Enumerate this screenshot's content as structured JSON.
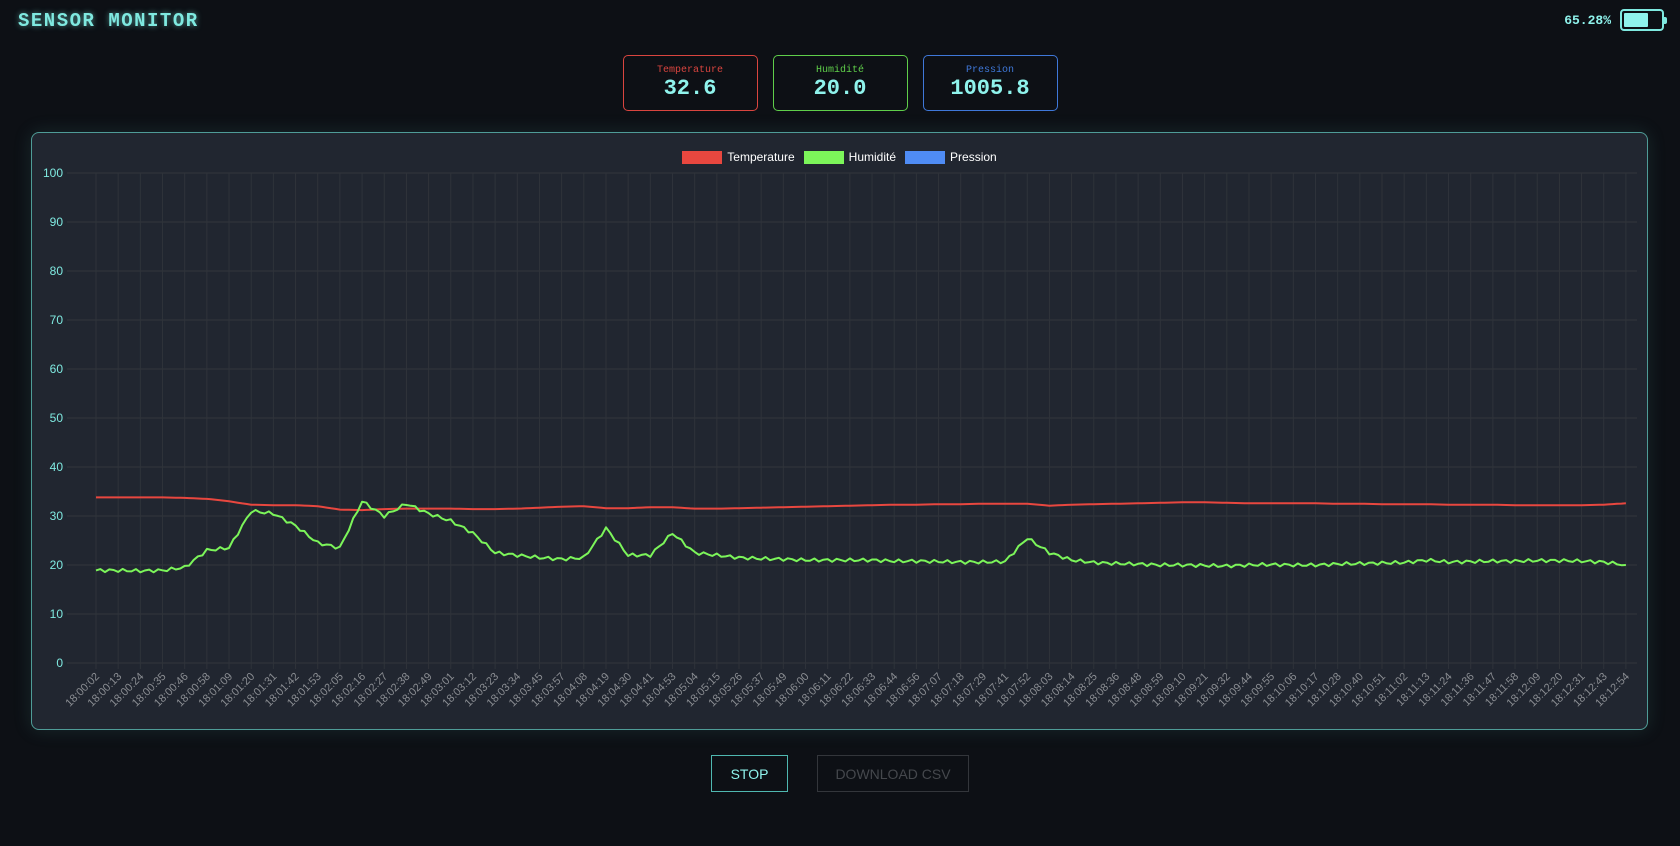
{
  "header": {
    "title": "SENSOR MONITOR",
    "battery": {
      "percent_label": "65.28%",
      "level": 65.28
    }
  },
  "cards": [
    {
      "label": "Temperature",
      "value": "32.6",
      "color": "#d9453f"
    },
    {
      "label": "Humidité",
      "value": "20.0",
      "color": "#5fce4a"
    },
    {
      "label": "Pression",
      "value": "1005.8",
      "color": "#3f78d9"
    }
  ],
  "buttons": {
    "stop_label": "STOP",
    "download_label": "DOWNLOAD CSV"
  },
  "colors": {
    "accent": "#7fe9e0",
    "temperature": "#e8473f",
    "humidity": "#7cf55a",
    "pressure": "#4f8cf5",
    "panel_border": "#4f9c97"
  },
  "chart_data": {
    "type": "line",
    "title": "",
    "xlabel": "",
    "ylabel": "",
    "ylim": [
      0,
      100
    ],
    "yticks": [
      0,
      10,
      20,
      30,
      40,
      50,
      60,
      70,
      80,
      90,
      100
    ],
    "grid": true,
    "legend_position": "top",
    "categories": [
      "18:00:02",
      "18:00:13",
      "18:00:24",
      "18:00:35",
      "18:00:46",
      "18:00:58",
      "18:01:09",
      "18:01:20",
      "18:01:31",
      "18:01:42",
      "18:01:53",
      "18:02:05",
      "18:02:16",
      "18:02:27",
      "18:02:38",
      "18:02:49",
      "18:03:01",
      "18:03:12",
      "18:03:23",
      "18:03:34",
      "18:03:45",
      "18:03:57",
      "18:04:08",
      "18:04:19",
      "18:04:30",
      "18:04:41",
      "18:04:53",
      "18:05:04",
      "18:05:15",
      "18:05:26",
      "18:05:37",
      "18:05:49",
      "18:06:00",
      "18:06:11",
      "18:06:22",
      "18:06:33",
      "18:06:44",
      "18:06:56",
      "18:07:07",
      "18:07:18",
      "18:07:29",
      "18:07:41",
      "18:07:52",
      "18:08:03",
      "18:08:14",
      "18:08:25",
      "18:08:36",
      "18:08:48",
      "18:08:59",
      "18:09:10",
      "18:09:21",
      "18:09:32",
      "18:09:44",
      "18:09:55",
      "18:10:06",
      "18:10:17",
      "18:10:28",
      "18:10:40",
      "18:10:51",
      "18:11:02",
      "18:11:13",
      "18:11:24",
      "18:11:36",
      "18:11:47",
      "18:11:58",
      "18:12:09",
      "18:12:20",
      "18:12:31",
      "18:12:43",
      "18:12:54"
    ],
    "series": [
      {
        "name": "Temperature",
        "color": "#e8473f",
        "values": [
          33.8,
          33.8,
          33.8,
          33.8,
          33.7,
          33.5,
          33.0,
          32.3,
          32.2,
          32.2,
          32.0,
          31.3,
          31.2,
          31.4,
          31.5,
          31.5,
          31.5,
          31.4,
          31.4,
          31.5,
          31.7,
          31.9,
          32.0,
          31.6,
          31.6,
          31.8,
          31.8,
          31.5,
          31.5,
          31.6,
          31.7,
          31.8,
          31.9,
          32.0,
          32.1,
          32.2,
          32.3,
          32.3,
          32.4,
          32.4,
          32.5,
          32.5,
          32.5,
          32.1,
          32.3,
          32.4,
          32.5,
          32.6,
          32.7,
          32.8,
          32.8,
          32.7,
          32.6,
          32.6,
          32.6,
          32.6,
          32.5,
          32.5,
          32.4,
          32.4,
          32.4,
          32.3,
          32.3,
          32.3,
          32.2,
          32.2,
          32.2,
          32.2,
          32.3,
          32.6
        ]
      },
      {
        "name": "Humidité",
        "color": "#7cf55a",
        "values": [
          18.9,
          18.9,
          18.8,
          18.9,
          19.5,
          23.0,
          23.5,
          31.0,
          30.5,
          28.0,
          24.5,
          23.5,
          33.0,
          30.0,
          32.5,
          30.5,
          29.0,
          26.5,
          22.5,
          22.0,
          21.5,
          21.2,
          21.5,
          27.5,
          22.0,
          22.0,
          26.5,
          22.5,
          22.0,
          21.5,
          21.3,
          21.2,
          21.0,
          21.0,
          21.0,
          21.0,
          20.8,
          20.8,
          20.7,
          20.6,
          20.6,
          20.7,
          25.5,
          22.5,
          21.0,
          20.5,
          20.3,
          20.2,
          20.0,
          20.0,
          19.9,
          19.8,
          20.0,
          20.1,
          20.0,
          20.0,
          20.2,
          20.3,
          20.4,
          20.5,
          21.0,
          20.6,
          20.7,
          20.8,
          20.8,
          20.9,
          20.9,
          20.8,
          20.6,
          20.0
        ]
      },
      {
        "name": "Pression",
        "color": "#4f8cf5",
        "values": []
      }
    ]
  }
}
